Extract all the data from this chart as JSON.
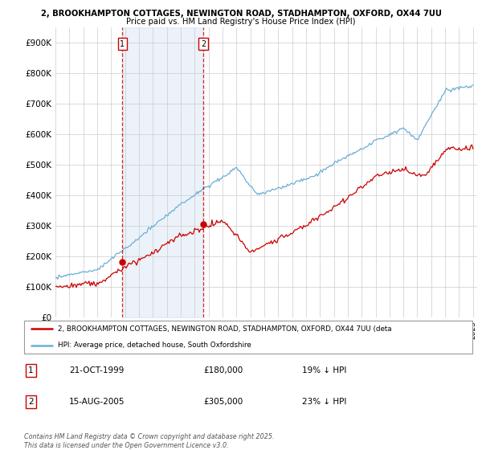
{
  "title_line1": "2, BROOKHAMPTON COTTAGES, NEWINGTON ROAD, STADHAMPTON, OXFORD, OX44 7UU",
  "title_line2": "Price paid vs. HM Land Registry's House Price Index (HPI)",
  "ylim": [
    0,
    950000
  ],
  "yticks": [
    0,
    100000,
    200000,
    300000,
    400000,
    500000,
    600000,
    700000,
    800000,
    900000
  ],
  "ytick_labels": [
    "£0",
    "£100K",
    "£200K",
    "£300K",
    "£400K",
    "£500K",
    "£600K",
    "£700K",
    "£800K",
    "£900K"
  ],
  "sale1_date": 1999.8,
  "sale1_price": 180000,
  "sale2_date": 2005.62,
  "sale2_price": 305000,
  "legend_line1": "2, BROOKHAMPTON COTTAGES, NEWINGTON ROAD, STADHAMPTON, OXFORD, OX44 7UU (deta",
  "legend_line2": "HPI: Average price, detached house, South Oxfordshire",
  "footnote": "Contains HM Land Registry data © Crown copyright and database right 2025.\nThis data is licensed under the Open Government Licence v3.0.",
  "line_color_hpi": "#6baed6",
  "line_color_price": "#cc0000",
  "vline_color": "#cc0000",
  "fill_color": "#c6dbef",
  "background_color": "#ffffff",
  "grid_color": "#cccccc"
}
